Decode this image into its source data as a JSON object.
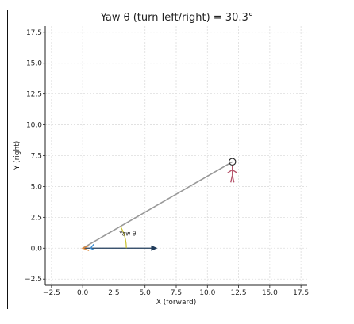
{
  "chart_data": {
    "type": "scatter",
    "title": "Yaw θ (turn left/right) = 30.3°",
    "xlabel": "X (forward)",
    "ylabel": "Y (right)",
    "xlim": [
      -3,
      18
    ],
    "ylim": [
      -3,
      18
    ],
    "xticks": [
      "−2.5",
      "0.0",
      "2.5",
      "5.0",
      "7.5",
      "10.0",
      "12.5",
      "15.0",
      "17.5"
    ],
    "xtick_values": [
      -2.5,
      0,
      2.5,
      5,
      7.5,
      10,
      12.5,
      15,
      17.5
    ],
    "yticks": [
      "−2.5",
      "0.0",
      "2.5",
      "5.0",
      "7.5",
      "10.0",
      "12.5",
      "15.0",
      "17.5"
    ],
    "ytick_values": [
      -2.5,
      0,
      2.5,
      5,
      7.5,
      10,
      12.5,
      15,
      17.5
    ],
    "grid": true,
    "yaw_deg": 30.3,
    "origin": {
      "x": 0,
      "y": 0
    },
    "target": {
      "x": 12,
      "y": 7
    },
    "forward_arrow": {
      "x0": 0,
      "y0": 0,
      "x1": 6,
      "y1": 0
    },
    "angle_arc_label": "Yaw θ",
    "colors": {
      "line_of_sight": "#999999",
      "forward_arrow": "#1f3b5a",
      "arc": "#c8c02a",
      "figure": "#b5536a",
      "marker_blue": "#3c8fd4",
      "marker_orange": "#e08a3a"
    }
  }
}
